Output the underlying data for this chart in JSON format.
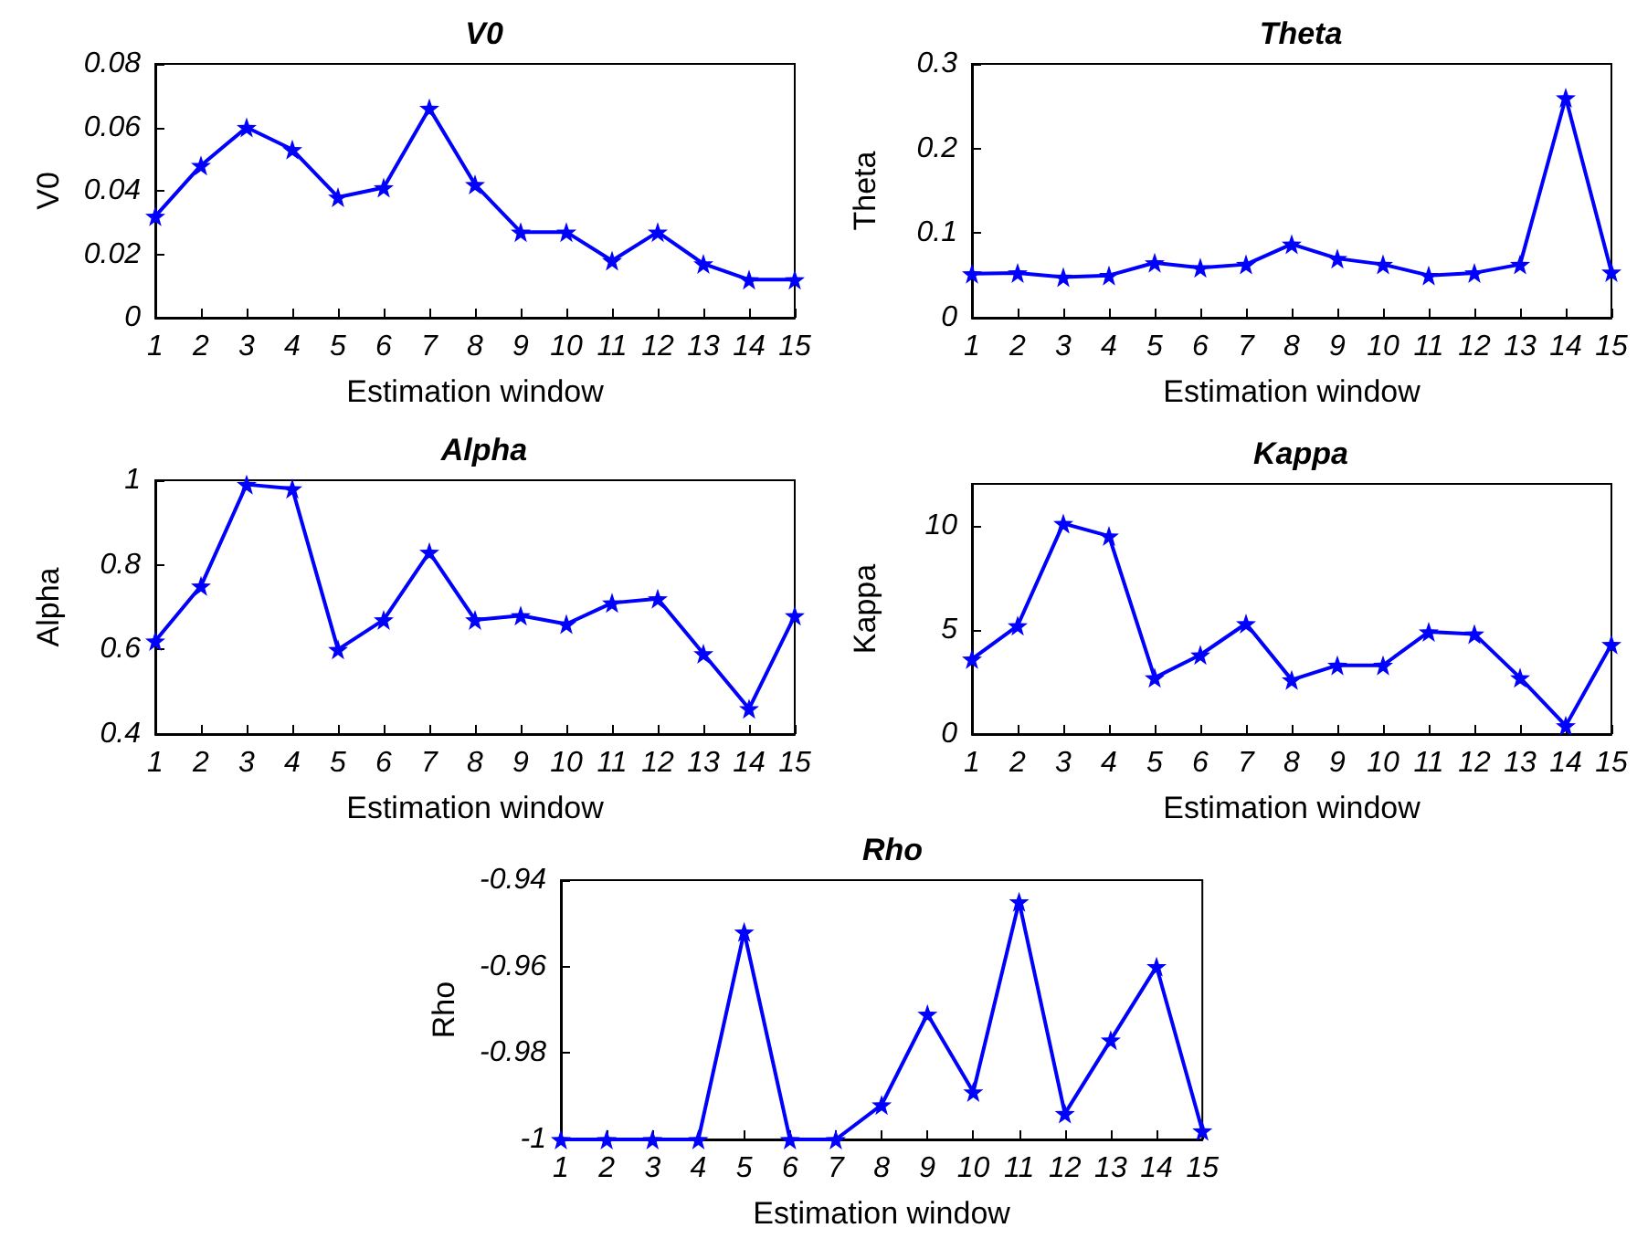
{
  "chart_data": [
    {
      "type": "line",
      "title": "V0",
      "xlabel": "Estimation window",
      "ylabel": "V0",
      "x": [
        1,
        2,
        3,
        4,
        5,
        6,
        7,
        8,
        9,
        10,
        11,
        12,
        13,
        14,
        15
      ],
      "xlim": [
        1,
        15
      ],
      "xticks": [
        1,
        2,
        3,
        4,
        5,
        6,
        7,
        8,
        9,
        10,
        11,
        12,
        13,
        14,
        15
      ],
      "ylim": [
        0,
        0.08
      ],
      "yticks": [
        0,
        0.02,
        0.04,
        0.06,
        0.08
      ],
      "marker": "star",
      "line_style": "solid",
      "series": [
        {
          "color": "#0000ff",
          "values": [
            0.032,
            0.048,
            0.06,
            0.053,
            0.038,
            0.041,
            0.066,
            0.042,
            0.027,
            0.027,
            0.018,
            0.027,
            0.017,
            0.012,
            0.012
          ]
        }
      ]
    },
    {
      "type": "line",
      "title": "Theta",
      "xlabel": "Estimation window",
      "ylabel": "Theta",
      "x": [
        1,
        2,
        3,
        4,
        5,
        6,
        7,
        8,
        9,
        10,
        11,
        12,
        13,
        14,
        15
      ],
      "xlim": [
        1,
        15
      ],
      "xticks": [
        1,
        2,
        3,
        4,
        5,
        6,
        7,
        8,
        9,
        10,
        11,
        12,
        13,
        14,
        15
      ],
      "ylim": [
        0,
        0.3
      ],
      "yticks": [
        0,
        0.1,
        0.2,
        0.3
      ],
      "marker": "star",
      "line_style": "solid",
      "series": [
        {
          "color": "#0000ff",
          "values": [
            0.052,
            0.053,
            0.048,
            0.05,
            0.065,
            0.059,
            0.063,
            0.087,
            0.07,
            0.063,
            0.05,
            0.053,
            0.063,
            0.26,
            0.054
          ]
        }
      ]
    },
    {
      "type": "line",
      "title": "Alpha",
      "xlabel": "Estimation window",
      "ylabel": "Alpha",
      "x": [
        1,
        2,
        3,
        4,
        5,
        6,
        7,
        8,
        9,
        10,
        11,
        12,
        13,
        14,
        15
      ],
      "xlim": [
        1,
        15
      ],
      "xticks": [
        1,
        2,
        3,
        4,
        5,
        6,
        7,
        8,
        9,
        10,
        11,
        12,
        13,
        14,
        15
      ],
      "ylim": [
        0.4,
        1
      ],
      "yticks": [
        0.4,
        0.6,
        0.8,
        1
      ],
      "marker": "star",
      "line_style": "solid",
      "series": [
        {
          "color": "#0000ff",
          "values": [
            0.62,
            0.75,
            0.99,
            0.98,
            0.6,
            0.67,
            0.83,
            0.67,
            0.68,
            0.66,
            0.71,
            0.72,
            0.59,
            0.46,
            0.68
          ]
        }
      ]
    },
    {
      "type": "line",
      "title": "Kappa",
      "xlabel": "Estimation window",
      "ylabel": "Kappa",
      "x": [
        1,
        2,
        3,
        4,
        5,
        6,
        7,
        8,
        9,
        10,
        11,
        12,
        13,
        14,
        15
      ],
      "xlim": [
        1,
        15
      ],
      "xticks": [
        1,
        2,
        3,
        4,
        5,
        6,
        7,
        8,
        9,
        10,
        11,
        12,
        13,
        14,
        15
      ],
      "ylim": [
        0,
        12
      ],
      "yticks": [
        0,
        5,
        10
      ],
      "marker": "star",
      "line_style": "solid",
      "series": [
        {
          "color": "#0000ff",
          "values": [
            3.6,
            5.2,
            10.1,
            9.5,
            2.7,
            3.8,
            5.3,
            2.6,
            3.3,
            3.3,
            4.9,
            4.8,
            2.7,
            0.4,
            4.3
          ]
        }
      ]
    },
    {
      "type": "line",
      "title": "Rho",
      "xlabel": "Estimation window",
      "ylabel": "Rho",
      "x": [
        1,
        2,
        3,
        4,
        5,
        6,
        7,
        8,
        9,
        10,
        11,
        12,
        13,
        14,
        15
      ],
      "xlim": [
        1,
        15
      ],
      "xticks": [
        1,
        2,
        3,
        4,
        5,
        6,
        7,
        8,
        9,
        10,
        11,
        12,
        13,
        14,
        15
      ],
      "ylim": [
        -1,
        -0.94
      ],
      "yticks": [
        -1,
        -0.98,
        -0.96,
        -0.94
      ],
      "marker": "star",
      "line_style": "solid",
      "series": [
        {
          "color": "#0000ff",
          "values": [
            -1,
            -1,
            -1,
            -1,
            -0.952,
            -1,
            -1,
            -0.992,
            -0.971,
            -0.989,
            -0.945,
            -0.994,
            -0.977,
            -0.96,
            -0.998
          ]
        }
      ]
    }
  ]
}
